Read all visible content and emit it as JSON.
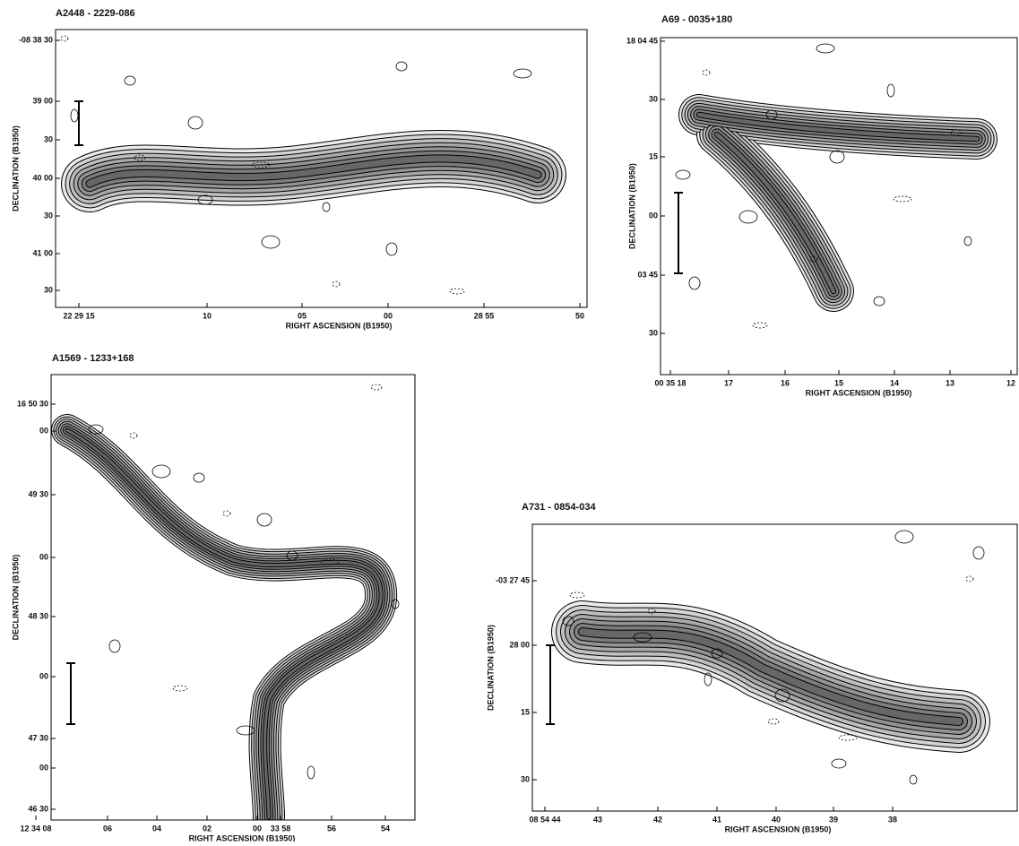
{
  "panels": [
    {
      "title": "A2448 - 2229-086",
      "x_label": "RIGHT ASCENSION (B1950)",
      "y_label": "DECLINATION (B1950)",
      "x_ticks": [
        "22 29 15",
        "10",
        "05",
        "00",
        "28 55",
        "50"
      ],
      "y_ticks": [
        "-08 38 30",
        "39 00",
        "30",
        "40 00",
        "30",
        "41 00",
        "30"
      ]
    },
    {
      "title": "A69 - 0035+180",
      "x_label": "RIGHT ASCENSION (B1950)",
      "y_label": "DECLINATION (B1950)",
      "x_ticks": [
        "00 35 18",
        "17",
        "16",
        "15",
        "14",
        "13",
        "12"
      ],
      "y_ticks": [
        "18 04 45",
        "30",
        "15",
        "00",
        "03 45",
        "30"
      ]
    },
    {
      "title": "A1569 - 1233+168",
      "x_label": "RIGHT ASCENSION (B1950)",
      "y_label": "DECLINATION (B1950)",
      "x_ticks": [
        "12 34 08",
        "06",
        "04",
        "02",
        "00",
        "33 58",
        "56",
        "54"
      ],
      "y_ticks": [
        "16 50 30",
        "00",
        "49 30",
        "00",
        "48 30",
        "00",
        "47 30",
        "00",
        "46 30"
      ]
    },
    {
      "title": "A731 - 0854-034",
      "x_label": "RIGHT ASCENSION (B1950)",
      "y_label": "DECLINATION (B1950)",
      "x_ticks": [
        "08 54 44",
        "43",
        "42",
        "41",
        "40",
        "39",
        "38"
      ],
      "y_ticks": [
        "-03 27 45",
        "28 00",
        "15",
        "30"
      ]
    }
  ]
}
